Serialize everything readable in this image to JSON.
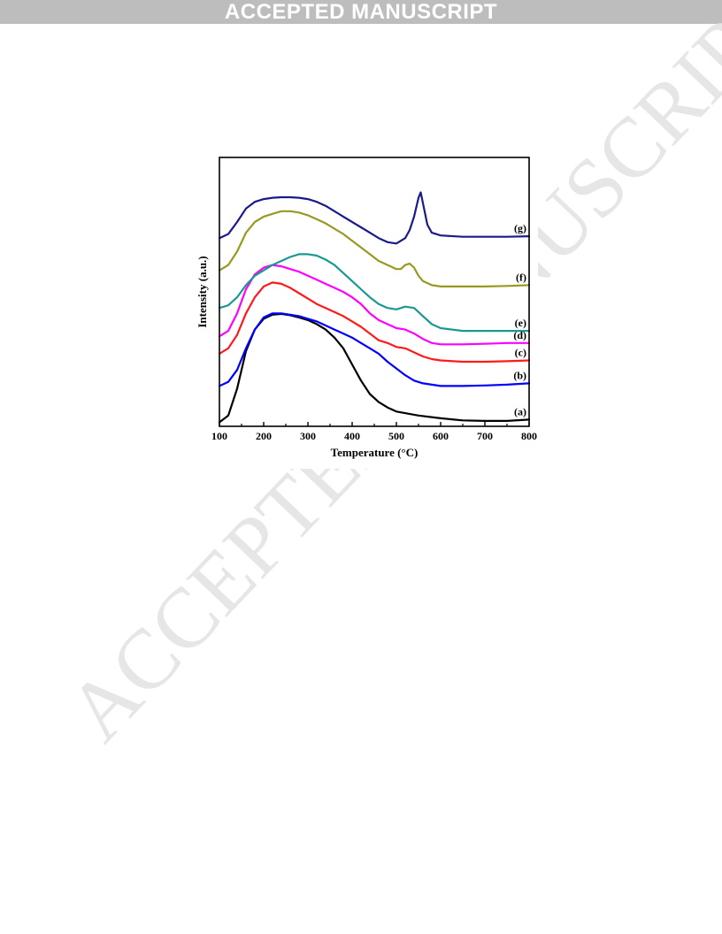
{
  "header": {
    "banner_text": "ACCEPTED MANUSCRIPT"
  },
  "watermark": {
    "text": "ACCEPTED MANUSCRIPT",
    "color": "#e6e6e6"
  },
  "chart_data": {
    "type": "line",
    "xlabel": "Temperature (°C)",
    "ylabel": "Intensity (a.u.)",
    "xlim": [
      100,
      800
    ],
    "ylim": [
      0,
      1
    ],
    "xticks": [
      100,
      200,
      300,
      400,
      500,
      600,
      700,
      800
    ],
    "xtick_labels": [
      "100",
      "200",
      "300",
      "400",
      "500",
      "600",
      "700",
      "800"
    ],
    "grid": false,
    "legend": "none",
    "series": [
      {
        "name": "(a)",
        "color": "#000000",
        "x": [
          100,
          120,
          140,
          160,
          180,
          200,
          220,
          240,
          260,
          280,
          300,
          320,
          340,
          360,
          380,
          400,
          420,
          440,
          460,
          480,
          500,
          550,
          600,
          650,
          700,
          750,
          800
        ],
        "y": [
          0.015,
          0.04,
          0.14,
          0.28,
          0.36,
          0.4,
          0.415,
          0.418,
          0.413,
          0.405,
          0.395,
          0.38,
          0.36,
          0.33,
          0.29,
          0.23,
          0.17,
          0.12,
          0.09,
          0.07,
          0.055,
          0.04,
          0.03,
          0.022,
          0.02,
          0.02,
          0.025
        ]
      },
      {
        "name": "(b)",
        "color": "#0000ff",
        "x": [
          100,
          120,
          140,
          160,
          180,
          200,
          220,
          240,
          260,
          280,
          300,
          320,
          340,
          360,
          380,
          400,
          420,
          440,
          460,
          480,
          500,
          520,
          540,
          560,
          580,
          600,
          650,
          700,
          750,
          800
        ],
        "y": [
          0.15,
          0.165,
          0.21,
          0.29,
          0.36,
          0.405,
          0.42,
          0.42,
          0.415,
          0.41,
          0.4,
          0.39,
          0.375,
          0.36,
          0.345,
          0.33,
          0.31,
          0.29,
          0.27,
          0.24,
          0.215,
          0.19,
          0.17,
          0.16,
          0.155,
          0.15,
          0.15,
          0.152,
          0.155,
          0.16
        ]
      },
      {
        "name": "(c)",
        "color": "#ff1a1a",
        "x": [
          100,
          120,
          140,
          160,
          180,
          200,
          220,
          240,
          260,
          280,
          300,
          320,
          340,
          360,
          380,
          400,
          420,
          440,
          460,
          480,
          500,
          520,
          540,
          560,
          580,
          600,
          650,
          700,
          750,
          800
        ],
        "y": [
          0.27,
          0.29,
          0.34,
          0.42,
          0.48,
          0.52,
          0.535,
          0.53,
          0.515,
          0.495,
          0.475,
          0.455,
          0.44,
          0.425,
          0.41,
          0.39,
          0.37,
          0.345,
          0.32,
          0.31,
          0.295,
          0.29,
          0.275,
          0.26,
          0.25,
          0.245,
          0.24,
          0.24,
          0.242,
          0.245
        ]
      },
      {
        "name": "(d)",
        "color": "#ff00ff",
        "x": [
          100,
          120,
          140,
          160,
          180,
          200,
          220,
          240,
          260,
          280,
          300,
          320,
          340,
          360,
          380,
          400,
          420,
          440,
          460,
          480,
          500,
          520,
          540,
          560,
          580,
          600,
          650,
          700,
          750,
          800
        ],
        "y": [
          0.335,
          0.355,
          0.42,
          0.51,
          0.565,
          0.59,
          0.6,
          0.595,
          0.585,
          0.575,
          0.56,
          0.545,
          0.53,
          0.515,
          0.5,
          0.48,
          0.455,
          0.42,
          0.395,
          0.38,
          0.365,
          0.36,
          0.345,
          0.325,
          0.31,
          0.305,
          0.305,
          0.307,
          0.31,
          0.31
        ]
      },
      {
        "name": "(e)",
        "color": "#1a9990",
        "x": [
          100,
          120,
          140,
          160,
          180,
          200,
          220,
          240,
          260,
          280,
          300,
          320,
          340,
          360,
          380,
          400,
          420,
          440,
          460,
          480,
          500,
          520,
          540,
          560,
          580,
          600,
          650,
          700,
          750,
          800
        ],
        "y": [
          0.44,
          0.45,
          0.48,
          0.525,
          0.56,
          0.58,
          0.6,
          0.615,
          0.63,
          0.64,
          0.64,
          0.635,
          0.62,
          0.6,
          0.57,
          0.54,
          0.51,
          0.48,
          0.455,
          0.44,
          0.435,
          0.445,
          0.44,
          0.41,
          0.38,
          0.365,
          0.355,
          0.355,
          0.355,
          0.355
        ]
      },
      {
        "name": "(f)",
        "color": "#999922",
        "x": [
          100,
          120,
          140,
          160,
          180,
          200,
          220,
          240,
          260,
          280,
          300,
          320,
          340,
          360,
          380,
          400,
          420,
          440,
          460,
          480,
          500,
          510,
          520,
          530,
          540,
          550,
          560,
          580,
          600,
          650,
          700,
          750,
          800
        ],
        "y": [
          0.58,
          0.6,
          0.65,
          0.72,
          0.76,
          0.78,
          0.79,
          0.8,
          0.8,
          0.795,
          0.785,
          0.77,
          0.755,
          0.735,
          0.715,
          0.69,
          0.665,
          0.64,
          0.615,
          0.6,
          0.585,
          0.585,
          0.6,
          0.605,
          0.59,
          0.56,
          0.54,
          0.525,
          0.52,
          0.52,
          0.52,
          0.522,
          0.525
        ]
      },
      {
        "name": "(g)",
        "color": "#1a1a8c",
        "x": [
          100,
          120,
          140,
          160,
          180,
          200,
          220,
          240,
          260,
          280,
          300,
          320,
          340,
          360,
          380,
          400,
          420,
          440,
          460,
          480,
          500,
          520,
          530,
          540,
          550,
          555,
          560,
          570,
          580,
          600,
          650,
          700,
          750,
          800
        ],
        "y": [
          0.7,
          0.715,
          0.76,
          0.81,
          0.835,
          0.845,
          0.85,
          0.852,
          0.852,
          0.85,
          0.845,
          0.835,
          0.82,
          0.8,
          0.78,
          0.76,
          0.74,
          0.72,
          0.7,
          0.685,
          0.68,
          0.7,
          0.73,
          0.78,
          0.85,
          0.87,
          0.83,
          0.75,
          0.72,
          0.71,
          0.705,
          0.705,
          0.705,
          0.707
        ]
      }
    ]
  }
}
